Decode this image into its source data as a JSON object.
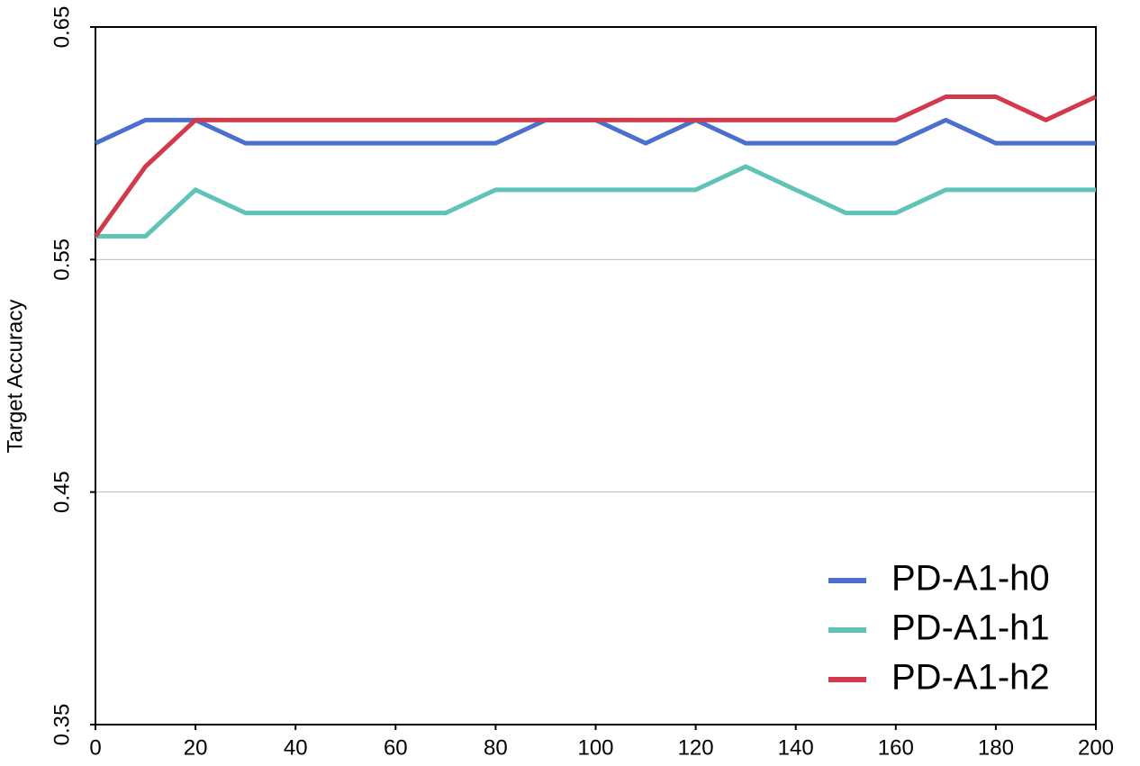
{
  "chart_data": {
    "type": "line",
    "y_label": "Target  Accuracy",
    "x": [
      0,
      10,
      20,
      30,
      40,
      50,
      60,
      70,
      80,
      90,
      100,
      110,
      120,
      130,
      140,
      150,
      160,
      170,
      180,
      190,
      200
    ],
    "series": [
      {
        "name": "PD-A1-h0",
        "color": "#4a6fcf",
        "values": [
          0.6,
          0.61,
          0.61,
          0.6,
          0.6,
          0.6,
          0.6,
          0.6,
          0.6,
          0.61,
          0.61,
          0.6,
          0.61,
          0.6,
          0.6,
          0.6,
          0.6,
          0.61,
          0.6,
          0.6,
          0.6
        ]
      },
      {
        "name": "PD-A1-h1",
        "color": "#5fc4b6",
        "values": [
          0.56,
          0.56,
          0.58,
          0.57,
          0.57,
          0.57,
          0.57,
          0.57,
          0.58,
          0.58,
          0.58,
          0.58,
          0.58,
          0.59,
          0.58,
          0.57,
          0.57,
          0.58,
          0.58,
          0.58,
          0.58
        ]
      },
      {
        "name": "PD-A1-h2",
        "color": "#d23a4c",
        "values": [
          0.56,
          0.59,
          0.61,
          0.61,
          0.61,
          0.61,
          0.61,
          0.61,
          0.61,
          0.61,
          0.61,
          0.61,
          0.61,
          0.61,
          0.61,
          0.61,
          0.61,
          0.62,
          0.62,
          0.61,
          0.62
        ]
      }
    ],
    "xlim": [
      0,
      200
    ],
    "xticks": [
      0,
      20,
      40,
      60,
      80,
      100,
      120,
      140,
      160,
      180,
      200
    ],
    "ylim": [
      0.35,
      0.65
    ],
    "yticks": [
      0.35,
      0.45,
      0.55,
      0.65
    ],
    "grid": true,
    "legend": "lower right"
  }
}
